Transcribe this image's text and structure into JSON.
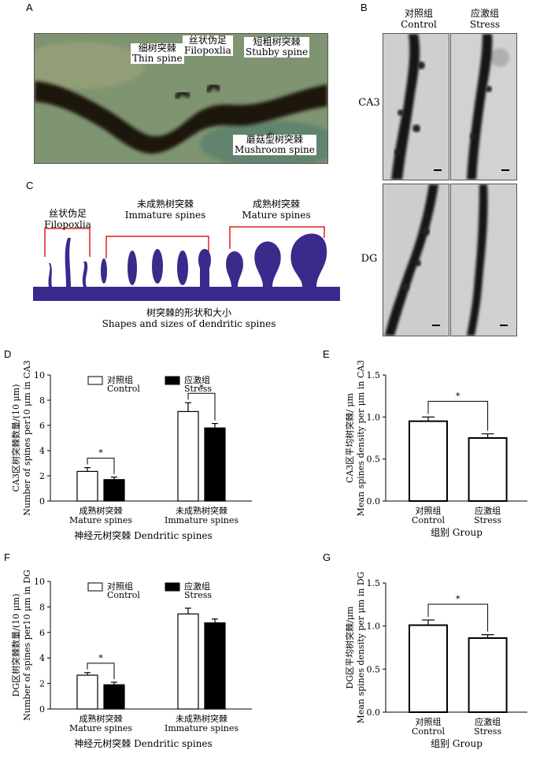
{
  "panels": {
    "A": "A",
    "B": "B",
    "C": "C",
    "D": "D",
    "E": "E",
    "F": "F",
    "G": "G"
  },
  "panelA": {
    "thin_cn": "细树突棘",
    "thin_en": "Thin spine",
    "filo_cn": "丝状伪足",
    "filo_en": "Filopoxlia",
    "stubby_cn": "短粗树突棘",
    "stubby_en": "Stubby spine",
    "mush_cn": "蘑菇型树突棘",
    "mush_en": "Mushroom spine"
  },
  "panelB": {
    "control_cn": "对照组",
    "control_en": "Control",
    "stress_cn": "应激组",
    "stress_en": "Stress",
    "row1": "CA3",
    "row2": "DG"
  },
  "panelC": {
    "filo_cn": "丝状伪足",
    "filo_en": "Filopoxlia",
    "immature_cn": "未成熟树突棘",
    "immature_en": "Immature spines",
    "mature_cn": "成熟树突棘",
    "mature_en": "Mature spines",
    "caption_cn": "树突棘的形状和大小",
    "caption_en": "Shapes and sizes of dendritic spines"
  },
  "colors": {
    "spine": "#3a2a8c",
    "bracket": "#e02020"
  },
  "chart_data": [
    {
      "panel": "D",
      "type": "bar",
      "ylabel_cn": "CA3区树突棘数量/(10 μm)",
      "ylabel_en": "Number of spines per10 μm in CA3",
      "xlabel": "神经元树突棘  Dendritic spines",
      "categories": [
        {
          "cn": "成熟树突棘",
          "en": "Mature spines"
        },
        {
          "cn": "未成熟树突棘",
          "en": "Immature spines"
        }
      ],
      "series": [
        {
          "cn": "对照组",
          "en": "Control",
          "fill": "#ffffff",
          "values": [
            2.35,
            7.1
          ],
          "errors": [
            0.3,
            0.7
          ]
        },
        {
          "cn": "应激组",
          "en": "Stress",
          "fill": "#000000",
          "values": [
            1.7,
            5.8
          ],
          "errors": [
            0.2,
            0.35
          ]
        }
      ],
      "ylim": [
        0,
        10
      ],
      "yticks": [
        "0",
        "2",
        "4",
        "6",
        "8",
        "10"
      ],
      "sig": [
        "*",
        "*"
      ]
    },
    {
      "panel": "E",
      "type": "bar",
      "ylabel_cn": "CA3区平均树突棘/ μm",
      "ylabel_en": "Mean spines density per μm in CA3",
      "xlabel": "组别  Group",
      "categories": [
        {
          "cn": "对照组",
          "en": "Control"
        },
        {
          "cn": "应激组",
          "en": "Stress"
        }
      ],
      "values": [
        0.95,
        0.75
      ],
      "errors": [
        0.05,
        0.05
      ],
      "ylim": [
        0,
        1.5
      ],
      "yticks": [
        "0.0",
        "0.5",
        "1.0",
        "1.5"
      ],
      "sig": [
        "*"
      ]
    },
    {
      "panel": "F",
      "type": "bar",
      "ylabel_cn": "DG区树突棘数量/(10 μm)",
      "ylabel_en": "Number of spines per10 μm in DG",
      "xlabel": "神经元树突棘  Dendritic spines",
      "categories": [
        {
          "cn": "成熟树突棘",
          "en": "Mature spines"
        },
        {
          "cn": "未成熟树突棘",
          "en": "Immature spines"
        }
      ],
      "series": [
        {
          "cn": "对照组",
          "en": "Control",
          "fill": "#ffffff",
          "values": [
            2.65,
            7.45
          ],
          "errors": [
            0.2,
            0.45
          ]
        },
        {
          "cn": "应激组",
          "en": "Stress",
          "fill": "#000000",
          "values": [
            1.9,
            6.75
          ],
          "errors": [
            0.2,
            0.3
          ]
        }
      ],
      "ylim": [
        0,
        10
      ],
      "yticks": [
        "0",
        "2",
        "4",
        "6",
        "8",
        "10"
      ],
      "sig": [
        "*"
      ]
    },
    {
      "panel": "G",
      "type": "bar",
      "ylabel_cn": "DG区平均树突棘/μm",
      "ylabel_en": "Mean spines density per μm in DG",
      "xlabel": "组别  Group",
      "categories": [
        {
          "cn": "对照组",
          "en": "Control"
        },
        {
          "cn": "应激组",
          "en": "Stress"
        }
      ],
      "values": [
        1.01,
        0.86
      ],
      "errors": [
        0.06,
        0.04
      ],
      "ylim": [
        0,
        1.5
      ],
      "yticks": [
        "0.0",
        "0.5",
        "1.0",
        "1.5"
      ],
      "sig": [
        "*"
      ]
    }
  ]
}
